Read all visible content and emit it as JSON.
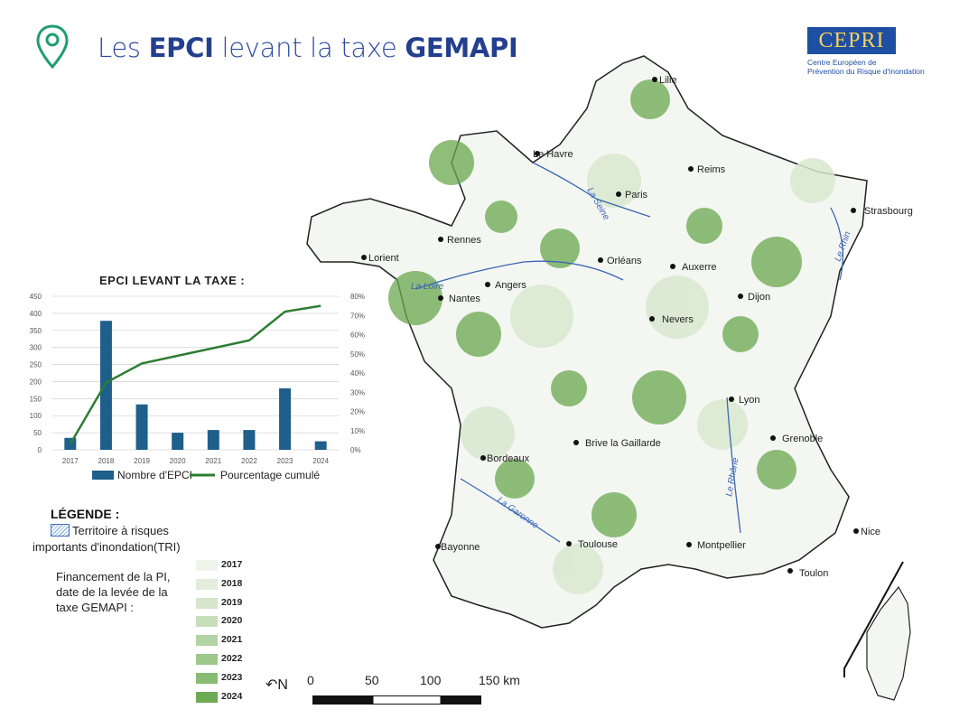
{
  "header": {
    "title_1": "Les ",
    "title_2": "EPCI",
    "title_3": " levant la taxe ",
    "title_4": "GEMAPI"
  },
  "logo": {
    "name": "CEPRI",
    "line1": "Centre Européen de",
    "line2": "Prévention du Risque d'Inondation"
  },
  "map": {
    "cities": [
      "Lille",
      "Le Havre",
      "Reims",
      "Paris",
      "Strasbourg",
      "Rennes",
      "Lorient",
      "Orléans",
      "Angers",
      "Nantes",
      "Auxerre",
      "Dijon",
      "Nevers",
      "Lyon",
      "Brive la Gaillarde",
      "Grenoble",
      "Bordeaux",
      "Bayonne",
      "Toulouse",
      "Montpellier",
      "Nice",
      "Toulon"
    ],
    "rivers": [
      "La Seine",
      "La Loire",
      "Le Rhin",
      "La Garonne",
      "Le Rhône"
    ],
    "colors": {
      "land": "#f4f6f2",
      "green_dark": "#6aa84f",
      "green_light": "#d8e9d0",
      "river": "#3b66b5",
      "border": "#222222"
    }
  },
  "chart_data": {
    "type": "bar",
    "title": "EPCI LEVANT LA TAXE :",
    "categories": [
      "2017",
      "2018",
      "2019",
      "2020",
      "2021",
      "2022",
      "2023",
      "2024"
    ],
    "series": [
      {
        "name": "Nombre d'EPCI",
        "type": "bar",
        "axis": "left",
        "color": "#1f5f8b",
        "values": [
          35,
          378,
          133,
          50,
          58,
          58,
          180,
          25
        ]
      },
      {
        "name": "Pourcentage cumulé",
        "type": "line",
        "axis": "right",
        "color": "#2e7d32",
        "values": [
          3,
          35,
          45,
          49,
          53,
          57,
          72,
          75
        ]
      }
    ],
    "ylim": [
      0,
      450
    ],
    "y2lim": [
      0,
      80
    ],
    "yticks": [
      "0",
      "50",
      "100",
      "150",
      "200",
      "250",
      "300",
      "350",
      "400",
      "450"
    ],
    "y2ticks": [
      "0%",
      "10%",
      "20%",
      "30%",
      "40%",
      "50%",
      "60%",
      "70%",
      "80%"
    ],
    "legend": [
      "Nombre d'EPCI",
      "Pourcentage cumulé"
    ]
  },
  "legend": {
    "title": "LÉGENDE :",
    "tri_line1": "Territoire à risques",
    "tri_line2": "importants d'inondation(TRI)",
    "fin_line1": "Financement de la PI,",
    "fin_line2": "date de la levée de la",
    "fin_line3": "taxe GEMAPI :",
    "years": [
      "2017",
      "2018",
      "2019",
      "2020",
      "2021",
      "2022",
      "2023",
      "2024"
    ],
    "year_colors": [
      "#f0f5ec",
      "#e2eddb",
      "#d5e6cb",
      "#c7debb",
      "#b3d3a4",
      "#9dc78b",
      "#88bb73",
      "#6daa54"
    ]
  },
  "scale": {
    "north": "N",
    "labels": [
      "0",
      "50",
      "100",
      "150 km"
    ]
  }
}
